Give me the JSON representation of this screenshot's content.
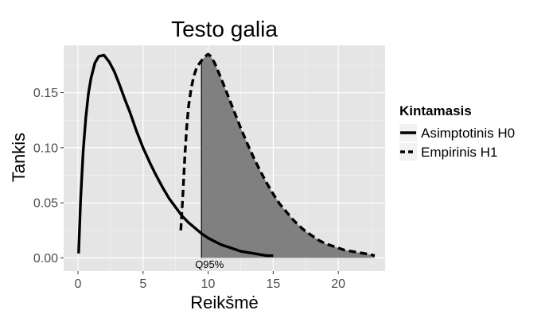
{
  "chart_data": {
    "type": "line",
    "title": "Testo galia",
    "xlabel": "Reikšmė",
    "ylabel": "Tankis",
    "xlim": [
      -1.1,
      23.6
    ],
    "ylim": [
      -0.012,
      0.193
    ],
    "x_ticks": [
      0,
      5,
      10,
      15,
      20
    ],
    "x_tick_labels": [
      "0",
      "5",
      "10",
      "15",
      "20"
    ],
    "y_ticks": [
      0.0,
      0.05,
      0.1,
      0.15
    ],
    "y_tick_labels": [
      "0.00",
      "0.05",
      "0.10",
      "0.15"
    ],
    "grid": true,
    "background": "#e5e5e5",
    "legend": {
      "title": "Kintamasis",
      "placement": "right",
      "entries": [
        {
          "label": "Asimptotinis H0",
          "linestyle": "solid"
        },
        {
          "label": "Empirinis H1",
          "linestyle": "dashed"
        }
      ]
    },
    "series": [
      {
        "name": "Asimptotinis H0",
        "linestyle": "solid",
        "color": "#000000",
        "x": [
          0.05,
          0.2,
          0.4,
          0.6,
          0.8,
          1.0,
          1.3,
          1.6,
          2.0,
          2.4,
          2.8,
          3.2,
          3.6,
          4.0,
          4.5,
          5.0,
          5.5,
          6.0,
          6.5,
          7.0,
          7.5,
          8.0,
          8.5,
          9.0,
          9.5,
          10.0,
          10.5,
          11.0,
          11.5,
          12.0,
          12.5,
          13.0,
          13.5,
          14.0,
          14.5,
          15.0
        ],
        "y": [
          0.004,
          0.052,
          0.097,
          0.127,
          0.149,
          0.163,
          0.177,
          0.183,
          0.184,
          0.178,
          0.169,
          0.157,
          0.144,
          0.132,
          0.115,
          0.1,
          0.087,
          0.075,
          0.064,
          0.054,
          0.046,
          0.038,
          0.032,
          0.027,
          0.022,
          0.018,
          0.015,
          0.012,
          0.01,
          0.008,
          0.006,
          0.005,
          0.004,
          0.003,
          0.002,
          0.002
        ]
      },
      {
        "name": "Empirinis H1",
        "linestyle": "dashed",
        "color": "#000000",
        "x": [
          7.9,
          8.05,
          8.2,
          8.35,
          8.5,
          8.7,
          8.9,
          9.1,
          9.3,
          9.55,
          9.8,
          10.0,
          10.2,
          10.5,
          11.0,
          11.5,
          12.0,
          12.5,
          13.0,
          13.5,
          14.0,
          14.5,
          15.0,
          15.5,
          16.0,
          16.5,
          17.0,
          17.5,
          18.0,
          18.5,
          19.0,
          19.5,
          20.0,
          20.5,
          21.0,
          21.5,
          22.0,
          22.5,
          22.8
        ],
        "y": [
          0.025,
          0.055,
          0.09,
          0.118,
          0.138,
          0.154,
          0.165,
          0.172,
          0.176,
          0.18,
          0.183,
          0.185,
          0.183,
          0.177,
          0.163,
          0.148,
          0.133,
          0.118,
          0.104,
          0.091,
          0.079,
          0.068,
          0.058,
          0.049,
          0.042,
          0.035,
          0.029,
          0.024,
          0.02,
          0.016,
          0.013,
          0.011,
          0.009,
          0.007,
          0.006,
          0.005,
          0.004,
          0.003,
          0.002
        ]
      }
    ],
    "shaded_region": {
      "series": "Empirinis H1",
      "from_x": 9.49,
      "color": "#808080"
    },
    "vline": {
      "x": 9.49
    },
    "annotations": [
      {
        "text": "Q95%",
        "x": 9.0,
        "y": -0.002
      }
    ]
  }
}
